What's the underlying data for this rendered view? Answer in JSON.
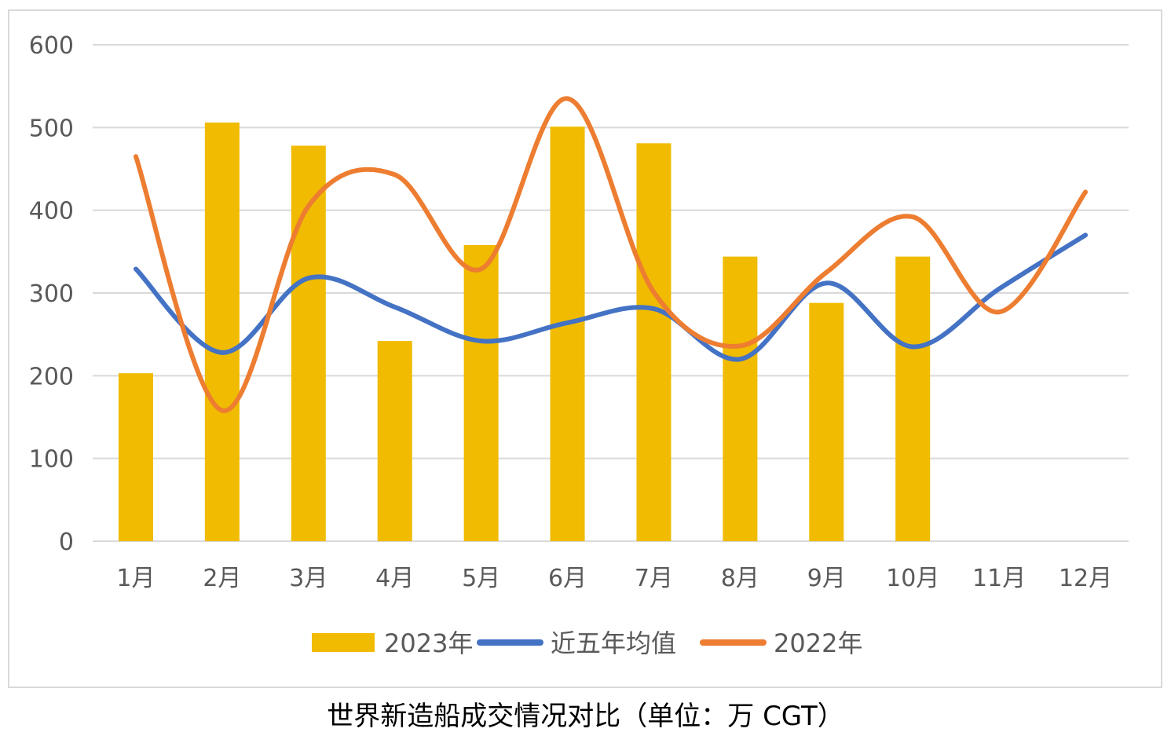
{
  "caption": "世界新造船成交情况对比（单位：万 CGT）",
  "chart_data": {
    "type": "bar",
    "title": "世界新造船成交情况对比（单位：万 CGT）",
    "categories": [
      "1月",
      "2月",
      "3月",
      "4月",
      "5月",
      "6月",
      "7月",
      "8月",
      "9月",
      "10月",
      "11月",
      "12月"
    ],
    "series": [
      {
        "name": "2023年",
        "type": "bar",
        "color": "#f0bb00",
        "values": [
          203,
          506,
          478,
          242,
          358,
          501,
          481,
          344,
          288,
          344,
          null,
          null
        ]
      },
      {
        "name": "近五年均值",
        "type": "line",
        "smooth": true,
        "color": "#4472c4",
        "values": [
          329,
          228,
          318,
          283,
          242,
          264,
          281,
          220,
          312,
          235,
          305,
          370
        ]
      },
      {
        "name": "2022年",
        "type": "line",
        "smooth": true,
        "color": "#ed7d31",
        "values": [
          465,
          158,
          405,
          443,
          329,
          535,
          301,
          236,
          325,
          392,
          277,
          422
        ]
      }
    ],
    "ylim": [
      0,
      600
    ],
    "yticks": [
      0,
      100,
      200,
      300,
      400,
      500,
      600
    ],
    "grid": true,
    "legend_position": "bottom"
  }
}
